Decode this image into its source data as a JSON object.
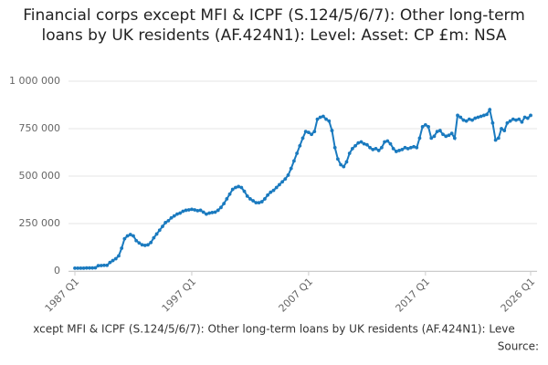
{
  "chart_data": {
    "type": "line",
    "title": "Financial corps except MFI & ICPF (S.124/5/6/7): Other long-term loans by UK residents (AF.424N1): Level: Asset: CP £m: NSA",
    "caption": "xcept MFI & ICPF (S.124/5/6/7): Other long-term loans by UK residents (AF.424N1): Leve",
    "source": "Source:",
    "categories": [
      "1987 Q1",
      null,
      null,
      null,
      null,
      null,
      null,
      null,
      null,
      null,
      null,
      null,
      null,
      null,
      null,
      null,
      null,
      null,
      null,
      null,
      null,
      null,
      null,
      null,
      null,
      null,
      null,
      null,
      null,
      null,
      null,
      null,
      null,
      null,
      null,
      null,
      null,
      null,
      null,
      null,
      "1997 Q1",
      null,
      null,
      null,
      null,
      null,
      null,
      null,
      null,
      null,
      null,
      null,
      null,
      null,
      null,
      null,
      null,
      null,
      null,
      null,
      null,
      null,
      null,
      null,
      null,
      null,
      null,
      null,
      null,
      null,
      null,
      null,
      null,
      null,
      null,
      null,
      null,
      null,
      null,
      null,
      "2007 Q1",
      null,
      null,
      null,
      null,
      null,
      null,
      null,
      null,
      null,
      null,
      null,
      null,
      null,
      null,
      null,
      null,
      null,
      null,
      null,
      null,
      null,
      null,
      null,
      null,
      null,
      null,
      null,
      null,
      null,
      null,
      null,
      null,
      null,
      null,
      null,
      null,
      null,
      null,
      null,
      "2017 Q1",
      null,
      null,
      null,
      null,
      null,
      null,
      null,
      null,
      null,
      null,
      null,
      null,
      null,
      null,
      null,
      null,
      null,
      null,
      null,
      null,
      null,
      null,
      null,
      null,
      null,
      null,
      null,
      null,
      null,
      null,
      null,
      null,
      null,
      null,
      null,
      "2026 Q1"
    ],
    "series": [
      {
        "color": "#1a7abf",
        "values": [
          15000,
          15000,
          15000,
          15000,
          16000,
          16000,
          16000,
          17000,
          28000,
          29000,
          30000,
          30000,
          45000,
          55000,
          65000,
          80000,
          120000,
          170000,
          185000,
          192000,
          185000,
          160000,
          148000,
          138000,
          135000,
          138000,
          150000,
          175000,
          195000,
          215000,
          235000,
          255000,
          265000,
          280000,
          290000,
          300000,
          305000,
          315000,
          320000,
          322000,
          325000,
          322000,
          318000,
          320000,
          310000,
          300000,
          305000,
          308000,
          310000,
          320000,
          335000,
          355000,
          380000,
          405000,
          430000,
          440000,
          445000,
          440000,
          420000,
          395000,
          380000,
          370000,
          360000,
          360000,
          365000,
          380000,
          400000,
          415000,
          425000,
          440000,
          455000,
          470000,
          485000,
          505000,
          540000,
          580000,
          620000,
          660000,
          700000,
          735000,
          730000,
          720000,
          735000,
          800000,
          810000,
          815000,
          800000,
          790000,
          740000,
          650000,
          590000,
          560000,
          550000,
          575000,
          620000,
          645000,
          660000,
          675000,
          680000,
          670000,
          665000,
          650000,
          640000,
          645000,
          635000,
          650000,
          680000,
          685000,
          670000,
          645000,
          630000,
          635000,
          640000,
          650000,
          645000,
          650000,
          655000,
          650000,
          700000,
          760000,
          770000,
          760000,
          700000,
          710000,
          735000,
          740000,
          720000,
          710000,
          715000,
          725000,
          700000,
          820000,
          810000,
          795000,
          790000,
          800000,
          795000,
          805000,
          810000,
          815000,
          820000,
          825000,
          850000,
          780000,
          690000,
          700000,
          750000,
          740000,
          780000,
          790000,
          800000,
          795000,
          800000,
          785000,
          810000,
          805000,
          820000
        ]
      }
    ],
    "ylim": [
      0,
      1000000
    ],
    "yticks": [
      0,
      {
        "value": 250000,
        "label": "250 000"
      },
      {
        "value": 500000,
        "label": "500 000"
      },
      {
        "value": 750000,
        "label": "750 000"
      },
      {
        "value": 1000000,
        "label": "1 000 000"
      }
    ],
    "grid": true
  }
}
